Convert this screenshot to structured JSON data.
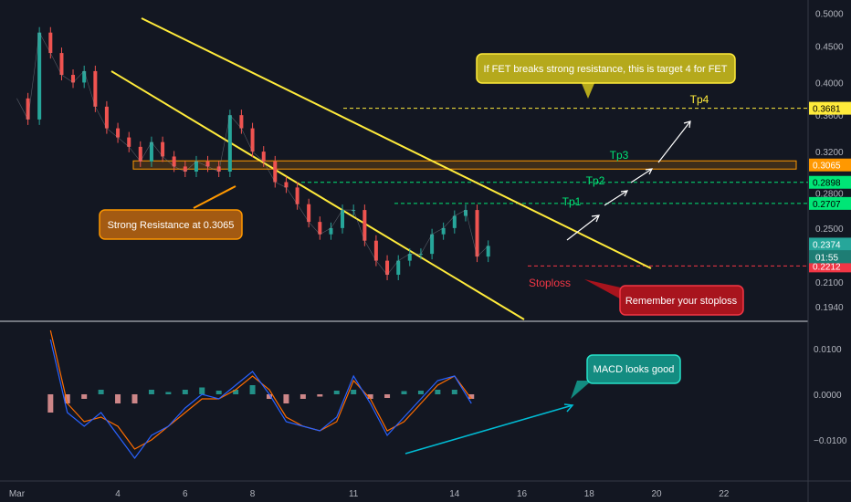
{
  "chart_data": {
    "type": "candlestick",
    "instrument": "FET",
    "price_axis": {
      "scale": "log",
      "range": [
        0.185,
        0.51
      ],
      "ticks": [
        "0.5000",
        "0.4500",
        "0.4000",
        "0.3600",
        "0.3200",
        "0.2800",
        "0.2500",
        "0.2200",
        "0.2100",
        "0.1940"
      ],
      "tick_values": [
        0.5,
        0.45,
        0.4,
        0.36,
        0.32,
        0.28,
        0.25,
        0.22,
        0.21,
        0.194
      ]
    },
    "time_axis": {
      "ticks": [
        "Mar",
        "4",
        "6",
        "8",
        "11",
        "14",
        "16",
        "18",
        "20",
        "22"
      ],
      "tick_days": [
        1,
        4,
        6,
        8,
        11,
        14,
        16,
        18,
        20,
        22
      ],
      "range_days": [
        0.5,
        24.5
      ]
    },
    "price_series_days": [
      1,
      1.33,
      1.67,
      2,
      2.33,
      2.67,
      3,
      3.33,
      3.67,
      4,
      4.33,
      4.67,
      5,
      5.33,
      5.67,
      6,
      6.33,
      6.67,
      7,
      7.33,
      7.67,
      8,
      8.33,
      8.67,
      9,
      9.33,
      9.67,
      10,
      10.33,
      10.67,
      11,
      11.33,
      11.67,
      12,
      12.33,
      12.67,
      13,
      13.33,
      13.67,
      14,
      14.33,
      14.67,
      15
    ],
    "price_series_close": [
      0.38,
      0.355,
      0.47,
      0.44,
      0.41,
      0.4,
      0.415,
      0.37,
      0.345,
      0.335,
      0.325,
      0.31,
      0.33,
      0.315,
      0.305,
      0.3,
      0.31,
      0.305,
      0.3,
      0.36,
      0.345,
      0.32,
      0.31,
      0.29,
      0.285,
      0.27,
      0.255,
      0.245,
      0.25,
      0.265,
      0.265,
      0.24,
      0.225,
      0.215,
      0.225,
      0.23,
      0.23,
      0.245,
      0.25,
      0.26,
      0.265,
      0.228,
      0.236
    ],
    "horizontal_levels": [
      {
        "name": "Tp4",
        "price": 0.3681,
        "label": "0.3681",
        "color": "#ffeb3b",
        "dashed": true
      },
      {
        "name": "Strong Resistance",
        "price": 0.3065,
        "label": "0.3065",
        "color": "#ff9800",
        "zone": true
      },
      {
        "name": "Tp2",
        "price": 0.2898,
        "label": "0.2898",
        "color": "#00e676",
        "dashed": true
      },
      {
        "name": "Tp1",
        "price": 0.2707,
        "label": "0.2707",
        "color": "#00e676",
        "dashed": true
      },
      {
        "name": "Stoploss",
        "price": 0.2212,
        "label": "0.2212",
        "color": "#f23645",
        "dashed": true
      }
    ],
    "current_price": {
      "label": "0.2374",
      "countdown": "01:55",
      "price": 0.2374
    },
    "macd_axis": {
      "ticks": [
        "0.0100",
        "0.0000",
        "−0.0100"
      ],
      "tick_values": [
        0.01,
        0,
        -0.01
      ],
      "range": [
        -0.019,
        0.016
      ]
    },
    "macd_series_days": [
      2,
      2.5,
      3,
      3.5,
      4,
      4.5,
      5,
      5.5,
      6,
      6.5,
      7,
      7.5,
      8,
      8.5,
      9,
      9.5,
      10,
      10.5,
      11,
      11.5,
      12,
      12.5,
      13,
      13.5,
      14,
      14.5
    ],
    "macd_line": [
      0.012,
      -0.004,
      -0.007,
      -0.004,
      -0.009,
      -0.014,
      -0.009,
      -0.007,
      -0.003,
      0,
      -0.001,
      0.002,
      0.005,
      0,
      -0.006,
      -0.007,
      -0.008,
      -0.005,
      0.004,
      -0.002,
      -0.009,
      -0.005,
      -0.001,
      0.003,
      0.004,
      -0.002
    ],
    "macd_signal": [
      0.014,
      -0.002,
      -0.006,
      -0.005,
      -0.007,
      -0.012,
      -0.01,
      -0.007,
      -0.004,
      -0.001,
      -0.001,
      0.001,
      0.004,
      0.001,
      -0.005,
      -0.007,
      -0.008,
      -0.006,
      0.003,
      -0.001,
      -0.008,
      -0.006,
      -0.002,
      0.002,
      0.004,
      -0.001
    ],
    "macd_histogram": [
      -0.004,
      -0.002,
      -0.001,
      0.001,
      -0.002,
      -0.002,
      0.001,
      0.0005,
      0.001,
      0.0015,
      0.0008,
      0.001,
      0.002,
      -0.001,
      -0.002,
      -0.001,
      -0.0005,
      0.0008,
      0.001,
      -0.001,
      -0.0008,
      0.0007,
      0.0008,
      0.001,
      0.001,
      -0.001
    ]
  },
  "annotations": {
    "resistance_callout": "Strong Resistance at 0.3065",
    "target4_callout": "If FET breaks strong resistance, this is target 4 for FET",
    "stoploss_callout": "Remember your stoploss",
    "macd_callout": "MACD looks good",
    "tp1": "Tp1",
    "tp2": "Tp2",
    "tp3": "Tp3",
    "tp4": "Tp4",
    "stoploss": "Stoploss"
  },
  "colors": {
    "background": "#131722",
    "up": "#26a69a",
    "down": "#ef5350",
    "channel": "#ffeb3b",
    "resistance": "#ff9800",
    "target": "#00e676",
    "stoploss": "#f23645",
    "macd_line": "#2962ff",
    "signal_line": "#ff6d00",
    "trend_line": "#00bcd4"
  }
}
